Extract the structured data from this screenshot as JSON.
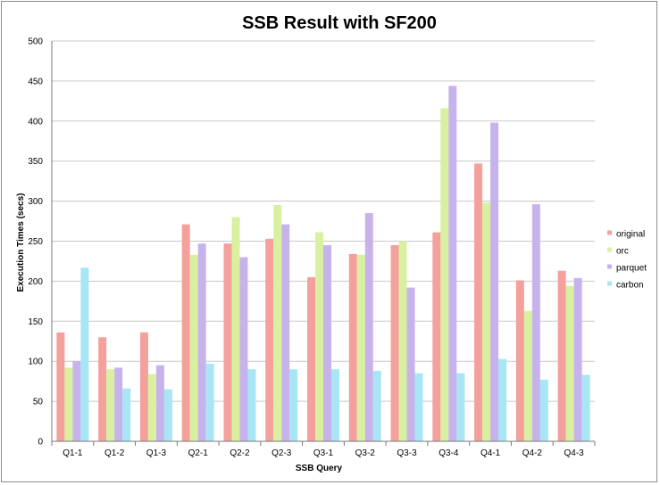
{
  "chart_data": {
    "type": "bar",
    "title": "SSB Result with SF200",
    "xlabel": "SSB Query",
    "ylabel": "Execution Times (secs)",
    "ylim": [
      0,
      500
    ],
    "yticks": [
      0,
      50,
      100,
      150,
      200,
      250,
      300,
      350,
      400,
      450,
      500
    ],
    "grid": true,
    "legend_position": "right",
    "categories": [
      "Q1-1",
      "Q1-2",
      "Q1-3",
      "Q2-1",
      "Q2-2",
      "Q2-3",
      "Q3-1",
      "Q3-2",
      "Q3-3",
      "Q3-4",
      "Q4-1",
      "Q4-2",
      "Q4-3"
    ],
    "series": [
      {
        "name": "original",
        "color": "#f4a09c",
        "values": [
          136,
          130,
          136,
          271,
          247,
          253,
          205,
          234,
          245,
          261,
          347,
          201,
          213
        ]
      },
      {
        "name": "orc",
        "color": "#d8f0a0",
        "values": [
          92,
          90,
          84,
          233,
          280,
          295,
          261,
          233,
          250,
          416,
          298,
          163,
          194
        ]
      },
      {
        "name": "parquet",
        "color": "#c7b3ec",
        "values": [
          100,
          92,
          95,
          247,
          230,
          271,
          245,
          285,
          192,
          444,
          398,
          296,
          204
        ]
      },
      {
        "name": "carbon",
        "color": "#a8e6f5",
        "values": [
          217,
          66,
          65,
          97,
          90,
          90,
          90,
          88,
          85,
          85,
          103,
          77,
          83
        ]
      }
    ]
  }
}
